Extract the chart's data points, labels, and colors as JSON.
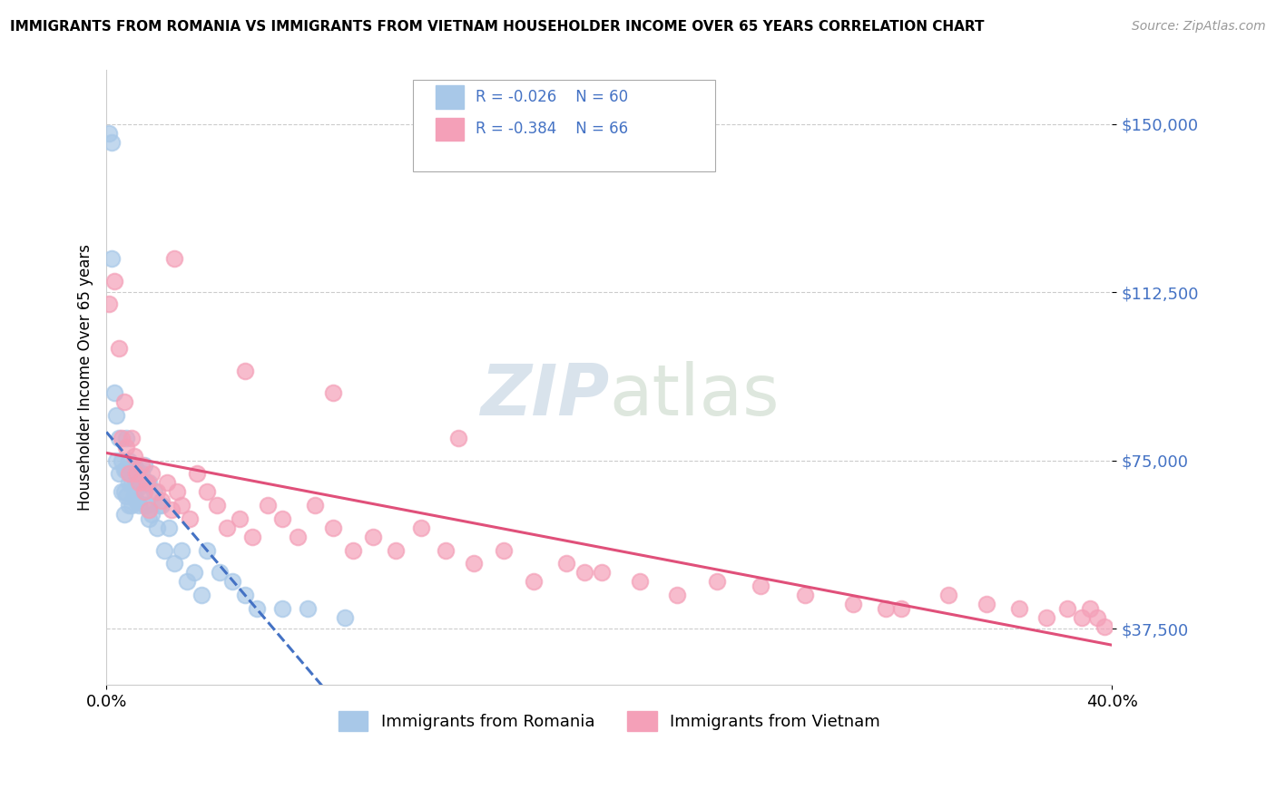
{
  "title": "IMMIGRANTS FROM ROMANIA VS IMMIGRANTS FROM VIETNAM HOUSEHOLDER INCOME OVER 65 YEARS CORRELATION CHART",
  "source": "Source: ZipAtlas.com",
  "ylabel": "Householder Income Over 65 years",
  "xlim": [
    0.0,
    0.4
  ],
  "ylim": [
    25000,
    162000
  ],
  "yticks": [
    37500,
    75000,
    112500,
    150000
  ],
  "ytick_labels": [
    "$37,500",
    "$75,000",
    "$112,500",
    "$150,000"
  ],
  "romania_color": "#a8c8e8",
  "vietnam_color": "#f4a0b8",
  "romania_line_color": "#4472c4",
  "vietnam_line_color": "#e0507a",
  "romania_x": [
    0.001,
    0.002,
    0.002,
    0.003,
    0.004,
    0.004,
    0.005,
    0.005,
    0.006,
    0.006,
    0.007,
    0.007,
    0.007,
    0.008,
    0.008,
    0.008,
    0.009,
    0.009,
    0.009,
    0.01,
    0.01,
    0.01,
    0.011,
    0.011,
    0.011,
    0.012,
    0.012,
    0.012,
    0.013,
    0.013,
    0.013,
    0.014,
    0.014,
    0.015,
    0.015,
    0.015,
    0.016,
    0.016,
    0.017,
    0.017,
    0.018,
    0.019,
    0.02,
    0.021,
    0.022,
    0.023,
    0.025,
    0.027,
    0.03,
    0.032,
    0.035,
    0.038,
    0.04,
    0.045,
    0.05,
    0.055,
    0.06,
    0.07,
    0.08,
    0.095
  ],
  "romania_y": [
    148000,
    146000,
    120000,
    90000,
    85000,
    75000,
    80000,
    72000,
    75000,
    68000,
    73000,
    68000,
    63000,
    80000,
    73000,
    67000,
    75000,
    70000,
    65000,
    73000,
    70000,
    65000,
    74000,
    71000,
    67000,
    73000,
    70000,
    66000,
    72000,
    69000,
    65000,
    72000,
    68000,
    74000,
    70000,
    65000,
    70000,
    65000,
    70000,
    62000,
    63000,
    68000,
    60000,
    65000,
    65000,
    55000,
    60000,
    52000,
    55000,
    48000,
    50000,
    45000,
    55000,
    50000,
    48000,
    45000,
    42000,
    42000,
    42000,
    40000
  ],
  "vietnam_x": [
    0.001,
    0.003,
    0.005,
    0.006,
    0.007,
    0.008,
    0.009,
    0.01,
    0.011,
    0.012,
    0.013,
    0.014,
    0.015,
    0.016,
    0.017,
    0.018,
    0.02,
    0.022,
    0.024,
    0.026,
    0.028,
    0.03,
    0.033,
    0.036,
    0.04,
    0.044,
    0.048,
    0.053,
    0.058,
    0.064,
    0.07,
    0.076,
    0.083,
    0.09,
    0.098,
    0.106,
    0.115,
    0.125,
    0.135,
    0.146,
    0.158,
    0.17,
    0.183,
    0.197,
    0.212,
    0.227,
    0.243,
    0.26,
    0.278,
    0.297,
    0.316,
    0.335,
    0.35,
    0.363,
    0.374,
    0.382,
    0.388,
    0.391,
    0.394,
    0.397,
    0.027,
    0.055,
    0.09,
    0.14,
    0.19,
    0.31
  ],
  "vietnam_y": [
    110000,
    115000,
    100000,
    80000,
    88000,
    78000,
    72000,
    80000,
    76000,
    72000,
    70000,
    74000,
    68000,
    70000,
    64000,
    72000,
    68000,
    66000,
    70000,
    64000,
    68000,
    65000,
    62000,
    72000,
    68000,
    65000,
    60000,
    62000,
    58000,
    65000,
    62000,
    58000,
    65000,
    60000,
    55000,
    58000,
    55000,
    60000,
    55000,
    52000,
    55000,
    48000,
    52000,
    50000,
    48000,
    45000,
    48000,
    47000,
    45000,
    43000,
    42000,
    45000,
    43000,
    42000,
    40000,
    42000,
    40000,
    42000,
    40000,
    38000,
    120000,
    95000,
    90000,
    80000,
    50000,
    42000
  ]
}
